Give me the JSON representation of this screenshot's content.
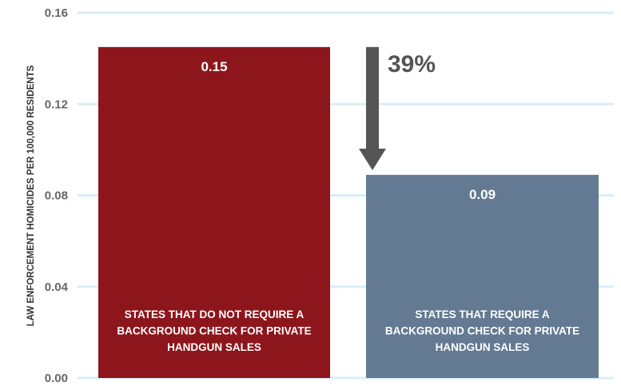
{
  "chart_data": {
    "type": "bar",
    "ylabel": "LAW ENFORCEMENT HOMICIDES PER 100,000 RESIDENTS",
    "ylim": [
      0,
      0.16
    ],
    "yticks": [
      "0.00",
      "0.04",
      "0.08",
      "0.12",
      "0.16"
    ],
    "grid": true,
    "categories": [
      [
        "STATES THAT DO NOT REQUIRE A",
        "BACKGROUND CHECK FOR PRIVATE",
        "HANDGUN SALES"
      ],
      [
        "STATES THAT REQUIRE A",
        "BACKGROUND CHECK FOR PRIVATE",
        "HANDGUN SALES"
      ]
    ],
    "values": [
      0.145,
      0.089
    ],
    "value_labels": [
      "0.15",
      "0.09"
    ],
    "bar_colors": [
      "#8c161c",
      "#647a93"
    ],
    "grid_color": "#d8eef7",
    "annotation": {
      "text": "39%",
      "arrow_color": "#555555",
      "direction": "down"
    }
  }
}
